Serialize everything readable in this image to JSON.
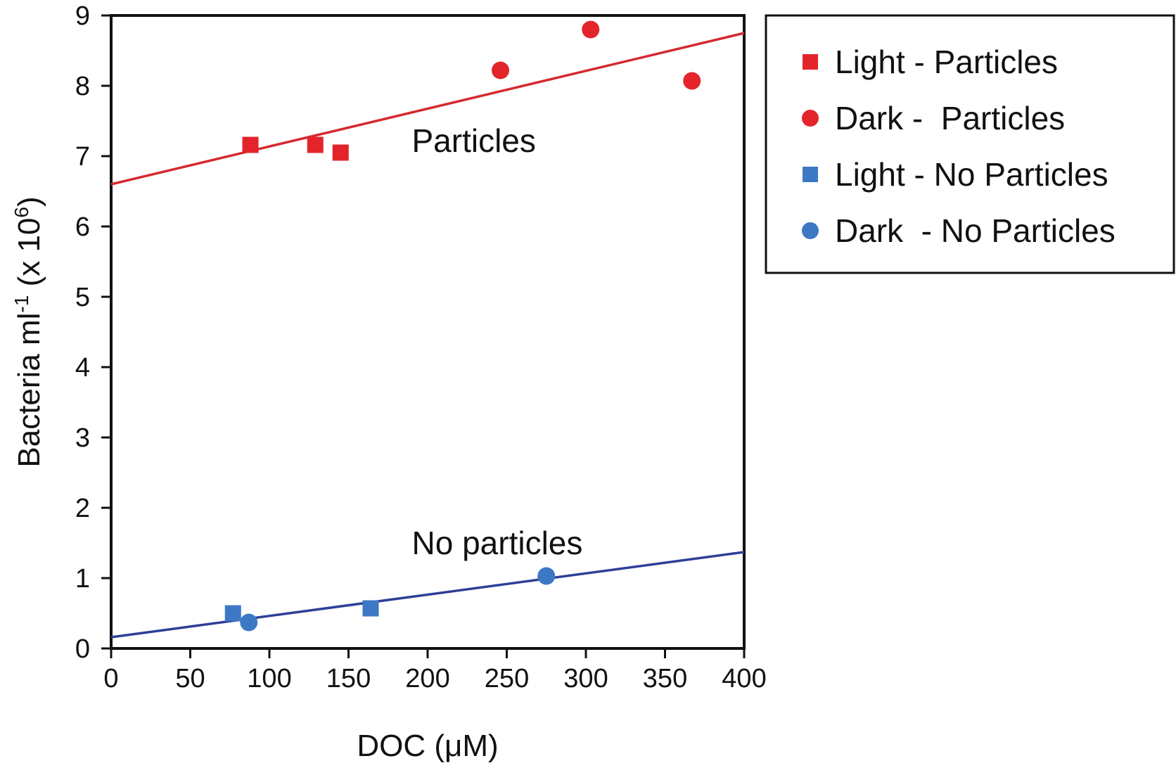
{
  "chart_data": {
    "type": "scatter",
    "title": "",
    "xlabel": "DOC (μM)",
    "ylabel": {
      "main": "Bacteria ml",
      "sup1": "-1",
      "mid": " (x 10",
      "sup2": "6",
      "end": ")"
    },
    "xlim": [
      0,
      400
    ],
    "ylim": [
      0,
      9
    ],
    "xticks": [
      0,
      50,
      100,
      150,
      200,
      250,
      300,
      350,
      400
    ],
    "yticks": [
      0,
      1,
      2,
      3,
      4,
      5,
      6,
      7,
      8,
      9
    ],
    "grid": false,
    "legend_position": "top-right outside",
    "series": [
      {
        "name": "Light - Particles",
        "marker": "square",
        "color": "#e3242b",
        "points": [
          [
            88,
            7.16
          ],
          [
            129,
            7.16
          ],
          [
            145,
            7.05
          ]
        ]
      },
      {
        "name": "Dark -  Particles",
        "marker": "circle",
        "color": "#e3242b",
        "points": [
          [
            246,
            8.22
          ],
          [
            303,
            8.8
          ],
          [
            367,
            8.07
          ]
        ]
      },
      {
        "name": "Light - No Particles",
        "marker": "square",
        "color": "#3d78c5",
        "points": [
          [
            77,
            0.5
          ],
          [
            164,
            0.57
          ]
        ]
      },
      {
        "name": "Dark  - No Particles",
        "marker": "circle",
        "color": "#3d78c5",
        "points": [
          [
            87,
            0.37
          ],
          [
            275,
            1.03
          ]
        ]
      }
    ],
    "trendlines": [
      {
        "name": "Particles trend",
        "color": "#d42a2f",
        "x": [
          0,
          400
        ],
        "y": [
          6.6,
          8.75
        ]
      },
      {
        "name": "No particles trend",
        "color": "#2e3f97",
        "x": [
          0,
          400
        ],
        "y": [
          0.16,
          1.37
        ]
      }
    ],
    "annotations": [
      {
        "text": "Particles",
        "x": 190,
        "y": 7.06
      },
      {
        "text": "No particles",
        "x": 190,
        "y": 1.34
      }
    ]
  }
}
